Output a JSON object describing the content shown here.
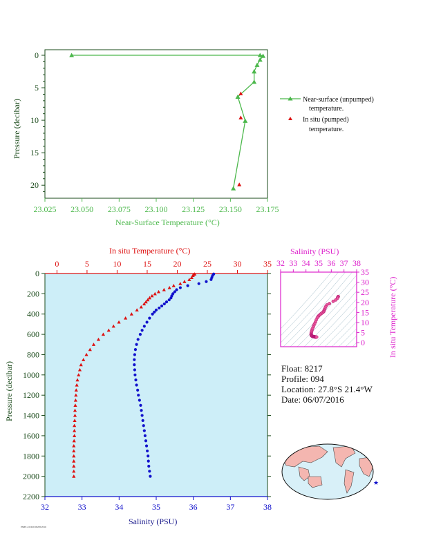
{
  "colors": {
    "green": "#4cb84c",
    "red": "#dd1111",
    "blue": "#1111cc",
    "magenta": "#dd22cc",
    "pink": "#e8589a",
    "navy": "#1a1a8c",
    "panel_bg": "#cdeef8",
    "land": "#f4b6b0",
    "ocean": "#d8f0f8"
  },
  "chart_data": [
    {
      "type": "line",
      "xlabel": "Near-Surface Temperature (°C)",
      "ylabel": "Pressure (decibar)",
      "xlim": [
        23.025,
        23.175
      ],
      "ylim": [
        0,
        22
      ],
      "y_reversed": true,
      "xticks": [
        "23.025",
        "23.050",
        "23.075",
        "23.100",
        "23.125",
        "23.150",
        "23.175"
      ],
      "yticks": [
        "0",
        "5",
        "10",
        "15",
        "20"
      ],
      "series": [
        {
          "name": "Near-surface (unpumped) temperature.",
          "marker": "triangle",
          "x": [
            23.043,
            23.17,
            23.172,
            23.17,
            23.168,
            23.166,
            23.166,
            23.155,
            23.16,
            23.152
          ],
          "y": [
            0.0,
            0.0,
            0.1,
            0.7,
            1.5,
            2.5,
            4.1,
            6.4,
            10.1,
            20.5
          ]
        },
        {
          "name": "In situ (pumped) temperature.",
          "marker": "triangle",
          "x": [
            23.157,
            23.157,
            23.156
          ],
          "y": [
            5.9,
            9.6,
            19.9
          ]
        }
      ],
      "legend": [
        "Near-surface (unpumped)",
        "temperature.",
        "In situ (pumped)",
        "temperature."
      ]
    },
    {
      "type": "line",
      "ylabel": "Pressure (decibar)",
      "ylim": [
        0,
        2200
      ],
      "y_reversed": true,
      "yticks": [
        "0",
        "200",
        "400",
        "600",
        "800",
        "1000",
        "1200",
        "1400",
        "1600",
        "1800",
        "2000",
        "2200"
      ],
      "top_axis": {
        "label": "In situ Temperature (°C)",
        "range": [
          -2,
          35
        ],
        "ticks": [
          "0",
          "5",
          "10",
          "15",
          "20",
          "25",
          "30",
          "35"
        ]
      },
      "bottom_axis": {
        "label": "Salinity (PSU)",
        "range": [
          32,
          38
        ],
        "ticks": [
          "32",
          "33",
          "34",
          "35",
          "36",
          "37",
          "38"
        ]
      },
      "temperature": {
        "pressure": [
          5,
          10,
          20,
          40,
          60,
          80,
          100,
          120,
          140,
          160,
          180,
          200,
          220,
          240,
          260,
          280,
          300,
          330,
          360,
          400,
          440,
          480,
          520,
          560,
          600,
          650,
          700,
          750,
          800,
          850,
          900,
          950,
          1000,
          1050,
          1100,
          1150,
          1200,
          1250,
          1300,
          1350,
          1400,
          1450,
          1500,
          1550,
          1600,
          1650,
          1700,
          1750,
          1800,
          1850,
          1900,
          1950,
          2000
        ],
        "values": [
          22.9,
          22.7,
          22.6,
          22.4,
          22.0,
          21.2,
          20.5,
          19.4,
          18.7,
          17.8,
          16.9,
          16.3,
          15.8,
          15.4,
          15.1,
          14.8,
          14.5,
          14.0,
          13.3,
          12.4,
          11.4,
          10.3,
          9.4,
          8.6,
          7.7,
          6.9,
          6.1,
          5.5,
          4.9,
          4.4,
          4.0,
          3.8,
          3.6,
          3.4,
          3.3,
          3.2,
          3.15,
          3.1,
          3.05,
          3.0,
          3.0,
          2.95,
          2.9,
          2.9,
          2.9,
          2.85,
          2.8,
          2.8,
          2.8,
          2.8,
          2.8,
          2.8,
          2.8
        ]
      },
      "salinity": {
        "pressure": [
          5,
          20,
          40,
          60,
          80,
          100,
          120,
          140,
          160,
          180,
          200,
          220,
          240,
          260,
          280,
          300,
          320,
          340,
          360,
          380,
          400,
          440,
          480,
          520,
          560,
          600,
          650,
          700,
          750,
          800,
          850,
          900,
          950,
          1000,
          1050,
          1100,
          1150,
          1200,
          1250,
          1300,
          1350,
          1400,
          1450,
          1500,
          1550,
          1600,
          1650,
          1700,
          1750,
          1800,
          1850,
          1900,
          1950,
          2000
        ],
        "values": [
          36.55,
          36.52,
          36.5,
          36.48,
          36.35,
          36.15,
          35.85,
          35.65,
          35.55,
          35.5,
          35.45,
          35.42,
          35.4,
          35.35,
          35.28,
          35.22,
          35.15,
          35.08,
          35.0,
          34.95,
          34.9,
          34.82,
          34.75,
          34.68,
          34.62,
          34.57,
          34.51,
          34.47,
          34.44,
          34.42,
          34.41,
          34.41,
          34.42,
          34.43,
          34.45,
          34.47,
          34.5,
          34.52,
          34.55,
          34.58,
          34.6,
          34.62,
          34.64,
          34.66,
          34.68,
          34.7,
          34.72,
          34.74,
          34.76,
          34.78,
          34.79,
          34.8,
          34.82,
          34.84
        ]
      }
    },
    {
      "type": "scatter",
      "title": "Salinity (PSU)",
      "ylabel": "In situ Temperature (°C)",
      "xlim": [
        32,
        38
      ],
      "ylim": [
        -2,
        35
      ],
      "xticks": [
        "32",
        "33",
        "34",
        "35",
        "36",
        "37",
        "38"
      ],
      "yticks": [
        "0",
        "5",
        "10",
        "15",
        "20",
        "25",
        "30",
        "35"
      ]
    }
  ],
  "float_info": {
    "float": "Float:  8217",
    "profile": "Profile:  094",
    "location": "Location:  27.8°S  21.4°W",
    "date": "Date:  06/07/2016"
  },
  "footer_text": "PMEL/OCRD 06/08/2016"
}
